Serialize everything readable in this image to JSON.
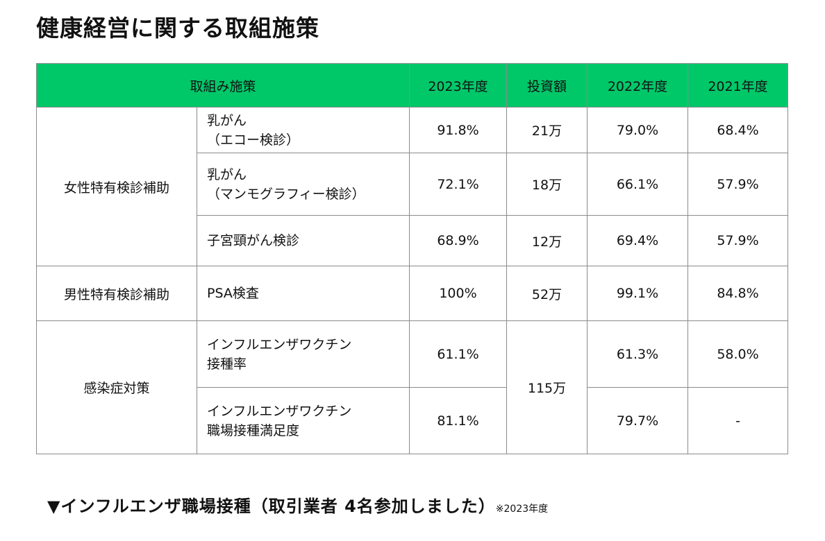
{
  "title": "健康経営に関する取組施策",
  "table": {
    "headers": [
      "取組み施策",
      "2023年度",
      "投資額",
      "2022年度",
      "2021年度"
    ],
    "groups": {
      "women": "女性特有検診補助",
      "men": "男性特有検診補助",
      "infection": "感染症対策"
    },
    "rows": [
      {
        "item_l1": "乳がん",
        "item_l2": "（エコー検診）",
        "y2023": "91.8%",
        "invest": "21万",
        "y2022": "79.0%",
        "y2021": "68.4%"
      },
      {
        "item_l1": "乳がん",
        "item_l2": "（マンモグラフィー検診）",
        "y2023": "72.1%",
        "invest": "18万",
        "y2022": "66.1%",
        "y2021": "57.9%"
      },
      {
        "item_l1": "子宮頸がん検診",
        "y2023": "68.9%",
        "invest": "12万",
        "y2022": "69.4%",
        "y2021": "57.9%"
      },
      {
        "item_l1": "PSA検査",
        "y2023": "100%",
        "invest": "52万",
        "y2022": "99.1%",
        "y2021": "84.8%"
      },
      {
        "item_l1": "インフルエンザワクチン",
        "item_l2": "接種率",
        "y2023": "61.1%",
        "invest": "115万",
        "y2022": "61.3%",
        "y2021": "58.0%"
      },
      {
        "item_l1": "インフルエンザワクチン",
        "item_l2": "職場接種満足度",
        "y2023": "81.1%",
        "y2022": "79.7%",
        "y2021": "-"
      }
    ]
  },
  "footer": {
    "text": "▼インフルエンザ職場接種（取引業者 4名参加しました）",
    "note": "※2023年度"
  },
  "colors": {
    "header_bg": "#00c869",
    "border": "#8a8a8a"
  }
}
